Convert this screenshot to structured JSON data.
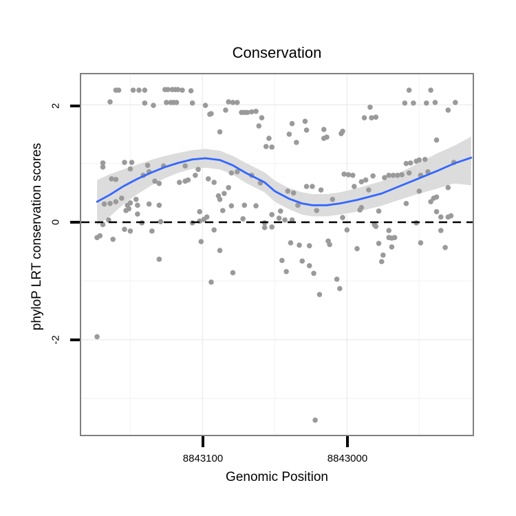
{
  "title": "Conservation",
  "x_axis": {
    "label": "Genomic Position",
    "ticks": [
      {
        "value": 8843100,
        "label": "8843100"
      },
      {
        "value": 8843000,
        "label": "8843000"
      }
    ]
  },
  "y_axis": {
    "label": "phyloP LRT conservation scores",
    "ticks": [
      {
        "value": 2,
        "label": "2"
      },
      {
        "value": 0,
        "label": "0"
      },
      {
        "value": -2,
        "label": "-2"
      }
    ]
  },
  "chart_data": {
    "type": "scatter",
    "title": "Conservation",
    "xlabel": "Genomic Position",
    "ylabel": "phyloP LRT conservation scores",
    "x_reversed": true,
    "xlim": [
      8843184,
      8842913
    ],
    "ylim": [
      -3.62,
      2.52
    ],
    "reference_line_y": 0,
    "grid": {
      "major_x": [
        8843100,
        8843000
      ],
      "major_y": [
        2,
        0,
        -2
      ],
      "minor_x": [
        8843150,
        8843050,
        8842950
      ],
      "minor_y": [
        1,
        -1,
        -3
      ]
    },
    "colors": {
      "point": "#9a9a9a",
      "smooth": "#3366FF",
      "band": "#d8d8d8",
      "dashed_line": "#000000",
      "grid_major": "#ededed",
      "grid_minor": "#f5f5f5",
      "panel_border": "#7f7f7f"
    },
    "points": [
      [
        8843160,
        2.25
      ],
      [
        8843158,
        2.25
      ],
      [
        8843148,
        2.25
      ],
      [
        8843144,
        2.25
      ],
      [
        8843140,
        2.25
      ],
      [
        8843126,
        2.26
      ],
      [
        8843124,
        2.26
      ],
      [
        8843121,
        2.26
      ],
      [
        8843119,
        2.26
      ],
      [
        8843117,
        2.26
      ],
      [
        8843114,
        2.25
      ],
      [
        8843108,
        2.24
      ],
      [
        8843164,
        2.05
      ],
      [
        8843140,
        2.03
      ],
      [
        8843134,
        1.99
      ],
      [
        8843125,
        2.04
      ],
      [
        8843122,
        2.04
      ],
      [
        8843120,
        2.04
      ],
      [
        8843118,
        2.04
      ],
      [
        8843107,
        2.03
      ],
      [
        8843098,
        1.99
      ],
      [
        8843095,
        1.84
      ],
      [
        8843169,
        1.01
      ],
      [
        8843169,
        0.94
      ],
      [
        8843154,
        1.02
      ],
      [
        8843149,
        1.02
      ],
      [
        8843150,
        0.91
      ],
      [
        8843138,
        0.97
      ],
      [
        8843137,
        0.86
      ],
      [
        8843141,
        0.8
      ],
      [
        8843127,
        0.96
      ],
      [
        8843112,
        0.96
      ],
      [
        8843103,
        0.9
      ],
      [
        8843105,
        0.8
      ],
      [
        8843163,
        0.74
      ],
      [
        8843160,
        0.73
      ],
      [
        8843133,
        0.7
      ],
      [
        8843130,
        0.66
      ],
      [
        8843116,
        0.68
      ],
      [
        8843112,
        0.7
      ],
      [
        8843110,
        0.72
      ],
      [
        8843096,
        0.74
      ],
      [
        8843082,
        2.05
      ],
      [
        8843079,
        2.04
      ],
      [
        8843076,
        2.04
      ],
      [
        8843084,
        1.91
      ],
      [
        8843094,
        1.85
      ],
      [
        8843073,
        1.87
      ],
      [
        8843071,
        1.87
      ],
      [
        8843069,
        1.87
      ],
      [
        8843066,
        1.88
      ],
      [
        8843063,
        1.89
      ],
      [
        8843059,
        1.78
      ],
      [
        8843061,
        1.64
      ],
      [
        8843088,
        1.54
      ],
      [
        8843054,
        1.43
      ],
      [
        8843056,
        1.29
      ],
      [
        8843052,
        1.28
      ],
      [
        8843038,
        1.68
      ],
      [
        8843029,
        1.72
      ],
      [
        8843040,
        1.5
      ],
      [
        8843028,
        1.57
      ],
      [
        8843035,
        1.36
      ],
      [
        8843016,
        1.58
      ],
      [
        8843016,
        1.43
      ],
      [
        8843014,
        1.45
      ],
      [
        8843004,
        1.51
      ],
      [
        8843080,
        0.84
      ],
      [
        8843076,
        0.86
      ],
      [
        8843066,
        0.8
      ],
      [
        8843060,
        0.67
      ],
      [
        8843092,
        0.68
      ],
      [
        8843082,
        0.59
      ],
      [
        8843085,
        0.49
      ],
      [
        8843041,
        0.53
      ],
      [
        8843037,
        0.5
      ],
      [
        8843028,
        0.61
      ],
      [
        8843024,
        0.61
      ],
      [
        8843018,
        0.55
      ],
      [
        8842957,
        2.25
      ],
      [
        8842942,
        2.25
      ],
      [
        8842960,
        2.03
      ],
      [
        8842954,
        2.03
      ],
      [
        8842945,
        2.03
      ],
      [
        8842939,
        2.04
      ],
      [
        8842925,
        2.04
      ],
      [
        8842984,
        1.96
      ],
      [
        8842930,
        1.91
      ],
      [
        8842988,
        1.78
      ],
      [
        8842983,
        1.78
      ],
      [
        8842980,
        1.79
      ],
      [
        8843003,
        1.55
      ],
      [
        8842938,
        1.4
      ],
      [
        8842959,
        1.0
      ],
      [
        8842956,
        1.01
      ],
      [
        8842952,
        1.04
      ],
      [
        8842950,
        1.06
      ],
      [
        8842946,
        1.07
      ],
      [
        8842926,
        1.02
      ],
      [
        8843002,
        0.82
      ],
      [
        8842999,
        0.81
      ],
      [
        8842996,
        0.8
      ],
      [
        8842982,
        0.79
      ],
      [
        8842974,
        0.76
      ],
      [
        8842971,
        0.8
      ],
      [
        8842968,
        0.8
      ],
      [
        8842965,
        0.8
      ],
      [
        8842962,
        0.81
      ],
      [
        8842957,
        0.84
      ],
      [
        8842949,
        0.8
      ],
      [
        8842944,
        0.86
      ],
      [
        8842990,
        0.69
      ],
      [
        8842987,
        0.72
      ],
      [
        8842995,
        0.61
      ],
      [
        8842985,
        0.55
      ],
      [
        8842950,
        0.53
      ],
      [
        8842930,
        0.59
      ],
      [
        8843168,
        0.31
      ],
      [
        8843160,
        0.35
      ],
      [
        8843156,
        0.41
      ],
      [
        8843164,
        0.32
      ],
      [
        8843152,
        0.29
      ],
      [
        8843151,
        0.23
      ],
      [
        8843153,
        0.2
      ],
      [
        8843150,
        0.33
      ],
      [
        8843146,
        0.39
      ],
      [
        8843145,
        0.29
      ],
      [
        8843137,
        0.31
      ],
      [
        8843130,
        0.29
      ],
      [
        8843145,
        0.14
      ],
      [
        8843165,
        0.04
      ],
      [
        8843169,
        -0.04
      ],
      [
        8843142,
        -0.01
      ],
      [
        8843129,
        0.01
      ],
      [
        8843107,
        -0.01
      ],
      [
        8843102,
        0.02
      ],
      [
        8843099,
        0.05
      ],
      [
        8843097,
        0.09
      ],
      [
        8843102,
        0.18
      ],
      [
        8843171,
        -0.23
      ],
      [
        8843173,
        -0.26
      ],
      [
        8843162,
        -0.29
      ],
      [
        8843154,
        -0.12
      ],
      [
        8843150,
        -0.15
      ],
      [
        8843135,
        -0.15
      ],
      [
        8843101,
        -0.33
      ],
      [
        8843130,
        -0.63
      ],
      [
        8843089,
        0.45
      ],
      [
        8843088,
        0.39
      ],
      [
        8843080,
        0.28
      ],
      [
        8843086,
        0.2
      ],
      [
        8843071,
        0.29
      ],
      [
        8843063,
        0.28
      ],
      [
        8843052,
        0.13
      ],
      [
        8843046,
        0.19
      ],
      [
        8843072,
        0.06
      ],
      [
        8843047,
        0.07
      ],
      [
        8843043,
        0.04
      ],
      [
        8843038,
        0.04
      ],
      [
        8843057,
        -0.01
      ],
      [
        8843057,
        -0.09
      ],
      [
        8843052,
        -0.08
      ],
      [
        8843034,
        0.29
      ],
      [
        8843021,
        0.2
      ],
      [
        8843010,
        0.39
      ],
      [
        8843092,
        -0.13
      ],
      [
        8843088,
        -0.48
      ],
      [
        8843039,
        -0.35
      ],
      [
        8843033,
        -0.39
      ],
      [
        8843026,
        -0.4
      ],
      [
        8843013,
        -0.32
      ],
      [
        8843012,
        -0.38
      ],
      [
        8843045,
        -0.65
      ],
      [
        8843031,
        -0.66
      ],
      [
        8843042,
        -0.84
      ],
      [
        8843026,
        -0.74
      ],
      [
        8843023,
        -0.87
      ],
      [
        8843079,
        -0.86
      ],
      [
        8843094,
        -1.02
      ],
      [
        8843007,
        -0.97
      ],
      [
        8843005,
        -1.13
      ],
      [
        8843019,
        -1.23
      ],
      [
        8842991,
        0.21
      ],
      [
        8842990,
        0.25
      ],
      [
        8842978,
        0.19
      ],
      [
        8842959,
        0.32
      ],
      [
        8842942,
        0.35
      ],
      [
        8842940,
        0.41
      ],
      [
        8842938,
        0.43
      ],
      [
        8842938,
        0.18
      ],
      [
        8842930,
        0.09
      ],
      [
        8842928,
        0.11
      ],
      [
        8842935,
        0.09
      ],
      [
        8843003,
        0.08
      ],
      [
        8843000,
        -0.13
      ],
      [
        8842981,
        -0.04
      ],
      [
        8842980,
        -0.07
      ],
      [
        8842971,
        -0.14
      ],
      [
        8842971,
        -0.26
      ],
      [
        8842969,
        -0.27
      ],
      [
        8842967,
        -0.26
      ],
      [
        8842978,
        -0.36
      ],
      [
        8842969,
        -0.42
      ],
      [
        8842993,
        -0.45
      ],
      [
        8842975,
        -0.56
      ],
      [
        8842976,
        -0.67
      ],
      [
        8842949,
        -0.35
      ],
      [
        8842932,
        -0.43
      ],
      [
        8842935,
        -0.14
      ],
      [
        8842952,
        -0.01
      ],
      [
        8843173,
        -1.95
      ],
      [
        8843022,
        -3.37
      ]
    ],
    "smooth": [
      [
        8843173,
        0.35
      ],
      [
        8843164,
        0.47
      ],
      [
        8843155,
        0.61
      ],
      [
        8843145,
        0.74
      ],
      [
        8843136,
        0.84
      ],
      [
        8843126,
        0.94
      ],
      [
        8843117,
        1.01
      ],
      [
        8843107,
        1.07
      ],
      [
        8843098,
        1.09
      ],
      [
        8843088,
        1.06
      ],
      [
        8843079,
        0.97
      ],
      [
        8843070,
        0.84
      ],
      [
        8843057,
        0.68
      ],
      [
        8843050,
        0.53
      ],
      [
        8843040,
        0.4
      ],
      [
        8843031,
        0.32
      ],
      [
        8843024,
        0.29
      ],
      [
        8843014,
        0.29
      ],
      [
        8843005,
        0.32
      ],
      [
        8842993,
        0.38
      ],
      [
        8842976,
        0.49
      ],
      [
        8842964,
        0.61
      ],
      [
        8842951,
        0.74
      ],
      [
        8842938,
        0.87
      ],
      [
        8842926,
        1.0
      ],
      [
        8842914,
        1.1
      ]
    ],
    "confidence_band": [
      [
        8843173,
        -0.05,
        0.72
      ],
      [
        8843164,
        0.1,
        0.82
      ],
      [
        8843155,
        0.3,
        0.9
      ],
      [
        8843145,
        0.48,
        0.98
      ],
      [
        8843136,
        0.62,
        1.06
      ],
      [
        8843126,
        0.75,
        1.13
      ],
      [
        8843117,
        0.84,
        1.18
      ],
      [
        8843107,
        0.91,
        1.23
      ],
      [
        8843098,
        0.93,
        1.25
      ],
      [
        8843088,
        0.9,
        1.22
      ],
      [
        8843079,
        0.81,
        1.13
      ],
      [
        8843070,
        0.67,
        1.01
      ],
      [
        8843057,
        0.51,
        0.85
      ],
      [
        8843050,
        0.35,
        0.71
      ],
      [
        8843040,
        0.22,
        0.58
      ],
      [
        8843031,
        0.13,
        0.51
      ],
      [
        8843024,
        0.1,
        0.48
      ],
      [
        8843014,
        0.1,
        0.48
      ],
      [
        8843005,
        0.13,
        0.51
      ],
      [
        8842993,
        0.18,
        0.58
      ],
      [
        8842976,
        0.28,
        0.7
      ],
      [
        8842964,
        0.38,
        0.84
      ],
      [
        8842951,
        0.48,
        1.0
      ],
      [
        8842938,
        0.57,
        1.17
      ],
      [
        8842926,
        0.66,
        1.3
      ],
      [
        8842914,
        0.63,
        1.46
      ]
    ]
  }
}
